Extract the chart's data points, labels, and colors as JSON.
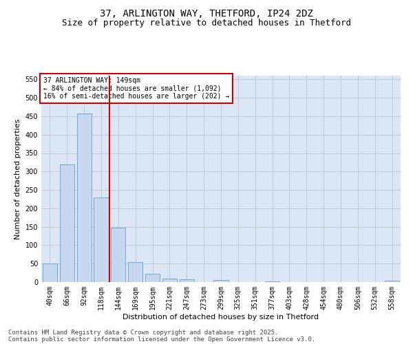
{
  "title_line1": "37, ARLINGTON WAY, THETFORD, IP24 2DZ",
  "title_line2": "Size of property relative to detached houses in Thetford",
  "xlabel": "Distribution of detached houses by size in Thetford",
  "ylabel": "Number of detached properties",
  "categories": [
    "40sqm",
    "66sqm",
    "92sqm",
    "118sqm",
    "144sqm",
    "169sqm",
    "195sqm",
    "221sqm",
    "247sqm",
    "273sqm",
    "299sqm",
    "325sqm",
    "351sqm",
    "377sqm",
    "403sqm",
    "428sqm",
    "454sqm",
    "480sqm",
    "506sqm",
    "532sqm",
    "558sqm"
  ],
  "values": [
    50,
    320,
    457,
    230,
    148,
    55,
    23,
    10,
    7,
    0,
    5,
    0,
    0,
    2,
    0,
    0,
    0,
    0,
    0,
    0,
    3
  ],
  "bar_color": "#c5d8f0",
  "bar_edge_color": "#6fa8d6",
  "grid_color": "#c0c8d8",
  "background_color": "#dce6f5",
  "vline_index": 4,
  "vline_color": "#cc0000",
  "annotation_text": "37 ARLINGTON WAY: 149sqm\n← 84% of detached houses are smaller (1,092)\n16% of semi-detached houses are larger (202) →",
  "annotation_box_color": "#cc0000",
  "ylim": [
    0,
    560
  ],
  "yticks": [
    0,
    50,
    100,
    150,
    200,
    250,
    300,
    350,
    400,
    450,
    500,
    550
  ],
  "footer_line1": "Contains HM Land Registry data © Crown copyright and database right 2025.",
  "footer_line2": "Contains public sector information licensed under the Open Government Licence v3.0.",
  "title_fontsize": 10,
  "subtitle_fontsize": 9,
  "axis_label_fontsize": 8,
  "tick_fontsize": 7,
  "annotation_fontsize": 7,
  "footer_fontsize": 6.5
}
